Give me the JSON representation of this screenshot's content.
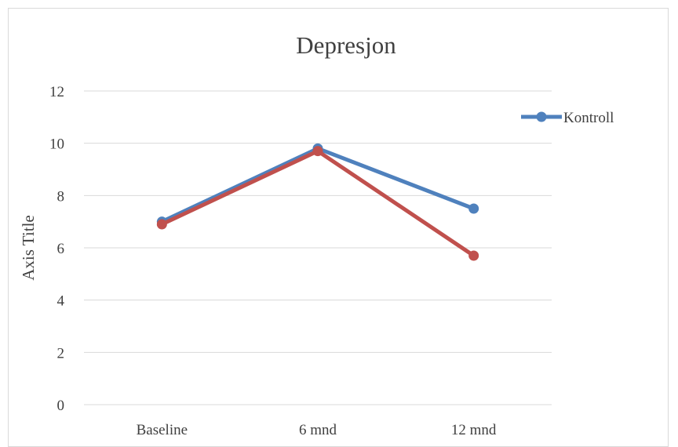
{
  "chart_data": {
    "type": "line",
    "title": "Depresjon",
    "xlabel": "",
    "ylabel": "Axis Title",
    "categories": [
      "Baseline",
      "6 mnd",
      "12 mnd"
    ],
    "ylim": [
      0,
      12
    ],
    "yticks": [
      0,
      2,
      4,
      6,
      8,
      10,
      12
    ],
    "grid": true,
    "legend_position": "right",
    "series": [
      {
        "name": "Kontroll",
        "color": "#4f81bd",
        "values": [
          7.0,
          9.8,
          7.5
        ]
      },
      {
        "name": "",
        "color": "#c0504d",
        "values": [
          6.9,
          9.7,
          5.7
        ]
      }
    ]
  }
}
